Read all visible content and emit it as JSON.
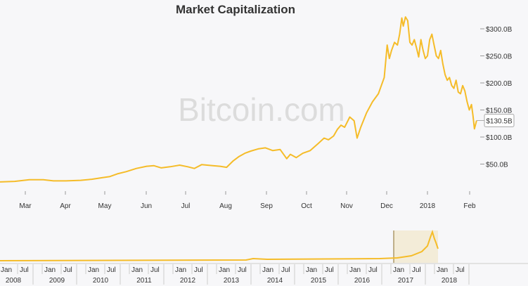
{
  "chart_data": {
    "type": "line",
    "title": "Market Capitalization",
    "watermark": "Bitcoin.com",
    "color": "#f5bc29",
    "x_ticks": [
      "Mar",
      "Apr",
      "May",
      "Jun",
      "Jul",
      "Aug",
      "Sep",
      "Oct",
      "Nov",
      "Dec",
      "2018",
      "Feb"
    ],
    "y_ticks": [
      "$50.0B",
      "$100.0B",
      "$150.0B",
      "$200.0B",
      "$250.0B",
      "$300.0B"
    ],
    "ylim": [
      0,
      325
    ],
    "current_value_label": "$130.5B",
    "series": [
      {
        "values": [
          [
            0,
            17
          ],
          [
            20,
            18
          ],
          [
            40,
            21
          ],
          [
            59,
            21
          ],
          [
            73,
            19
          ],
          [
            90,
            19
          ],
          [
            110,
            20
          ],
          [
            125,
            22
          ],
          [
            140,
            25
          ],
          [
            150,
            27
          ],
          [
            160,
            32
          ],
          [
            172,
            36
          ],
          [
            186,
            42
          ],
          [
            200,
            46
          ],
          [
            210,
            47
          ],
          [
            220,
            43
          ],
          [
            232,
            45
          ],
          [
            245,
            48
          ],
          [
            256,
            45
          ],
          [
            265,
            42
          ],
          [
            275,
            49
          ],
          [
            290,
            47
          ],
          [
            300,
            46
          ],
          [
            309,
            44
          ],
          [
            318,
            56
          ],
          [
            326,
            64
          ],
          [
            334,
            70
          ],
          [
            342,
            74
          ],
          [
            352,
            78
          ],
          [
            362,
            80
          ],
          [
            372,
            75
          ],
          [
            382,
            77
          ],
          [
            391,
            60
          ],
          [
            396,
            68
          ],
          [
            404,
            62
          ],
          [
            413,
            70
          ],
          [
            423,
            75
          ],
          [
            434,
            88
          ],
          [
            442,
            98
          ],
          [
            448,
            95
          ],
          [
            455,
            102
          ],
          [
            460,
            114
          ],
          [
            465,
            122
          ],
          [
            470,
            118
          ],
          [
            477,
            137
          ],
          [
            483,
            130
          ],
          [
            487,
            98
          ],
          [
            492,
            118
          ],
          [
            500,
            145
          ],
          [
            508,
            165
          ],
          [
            516,
            180
          ],
          [
            524,
            210
          ],
          [
            528,
            270
          ],
          [
            531,
            245
          ],
          [
            534,
            260
          ],
          [
            538,
            275
          ],
          [
            542,
            270
          ],
          [
            545,
            290
          ],
          [
            548,
            320
          ],
          [
            550,
            305
          ],
          [
            553,
            322
          ],
          [
            556,
            315
          ],
          [
            559,
            275
          ],
          [
            562,
            270
          ],
          [
            565,
            280
          ],
          [
            568,
            265
          ],
          [
            571,
            248
          ],
          [
            574,
            280
          ],
          [
            577,
            260
          ],
          [
            580,
            245
          ],
          [
            583,
            250
          ],
          [
            586,
            280
          ],
          [
            589,
            290
          ],
          [
            592,
            270
          ],
          [
            595,
            250
          ],
          [
            598,
            245
          ],
          [
            601,
            260
          ],
          [
            604,
            235
          ],
          [
            607,
            215
          ],
          [
            610,
            205
          ],
          [
            613,
            210
          ],
          [
            616,
            195
          ],
          [
            619,
            190
          ],
          [
            622,
            205
          ],
          [
            625,
            183
          ],
          [
            628,
            180
          ],
          [
            631,
            195
          ],
          [
            634,
            185
          ],
          [
            637,
            165
          ],
          [
            640,
            150
          ],
          [
            643,
            160
          ],
          [
            645,
            140
          ],
          [
            647,
            115
          ],
          [
            650,
            130.5
          ]
        ]
      }
    ],
    "navigator": {
      "years": [
        "2008",
        "2009",
        "2010",
        "2011",
        "2012",
        "2013",
        "2014",
        "2015",
        "2016",
        "2017",
        "2018"
      ],
      "sub_ticks": [
        "Jan",
        "Jul"
      ]
    }
  }
}
